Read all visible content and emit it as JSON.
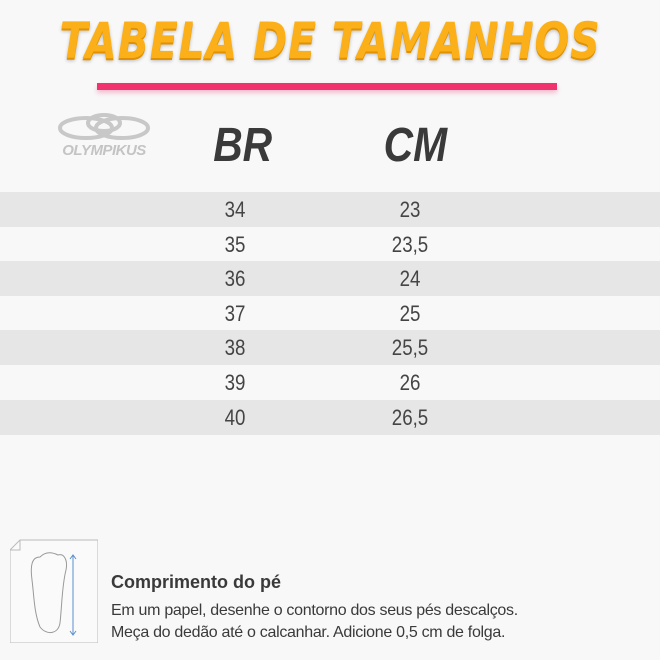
{
  "title": "TABELA DE TAMANHOS",
  "brand": "OLYMPIKUS",
  "colors": {
    "title": "#fbb019",
    "underline": "#f0336f",
    "stripe": "#e6e6e6"
  },
  "table": {
    "headers": [
      "BR",
      "CM"
    ],
    "rows": [
      [
        "34",
        "23"
      ],
      [
        "35",
        "23,5"
      ],
      [
        "36",
        "24"
      ],
      [
        "37",
        "25"
      ],
      [
        "38",
        "25,5"
      ],
      [
        "39",
        "26"
      ],
      [
        "40",
        "26,5"
      ]
    ]
  },
  "footer": {
    "icon": "foot-measure-icon",
    "title": "Comprimento do pé",
    "lines": [
      "Em um papel, desenhe o contorno dos seus pés descalços.",
      "Meça do dedão até o calcanhar. Adicione 0,5 cm de folga."
    ]
  }
}
